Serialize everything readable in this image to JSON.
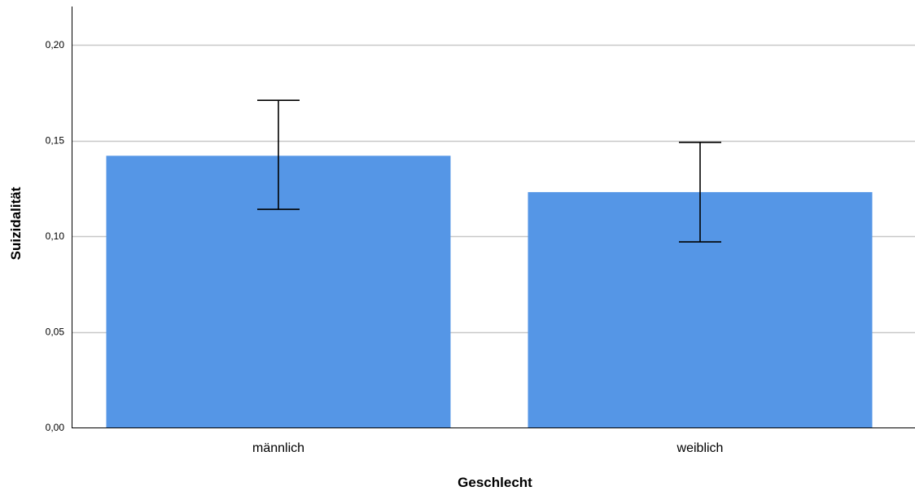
{
  "chart_data": {
    "type": "bar",
    "categories": [
      "männlich",
      "weiblich"
    ],
    "values": [
      0.142,
      0.123
    ],
    "error_bars": [
      {
        "lower": 0.114,
        "upper": 0.171
      },
      {
        "lower": 0.097,
        "upper": 0.149
      }
    ],
    "xlabel": "Geschlecht",
    "ylabel": "Suizidalität",
    "ylim": [
      0,
      0.22
    ],
    "yticks": [
      "0,00",
      "0,05",
      "0,10",
      "0,15",
      "0,20"
    ],
    "ytick_values": [
      0,
      0.05,
      0.1,
      0.15,
      0.2
    ],
    "grid": true,
    "bar_color": "#5596e6",
    "gridline_color": "#c8c8c8",
    "errorbar_color": "#000000"
  }
}
